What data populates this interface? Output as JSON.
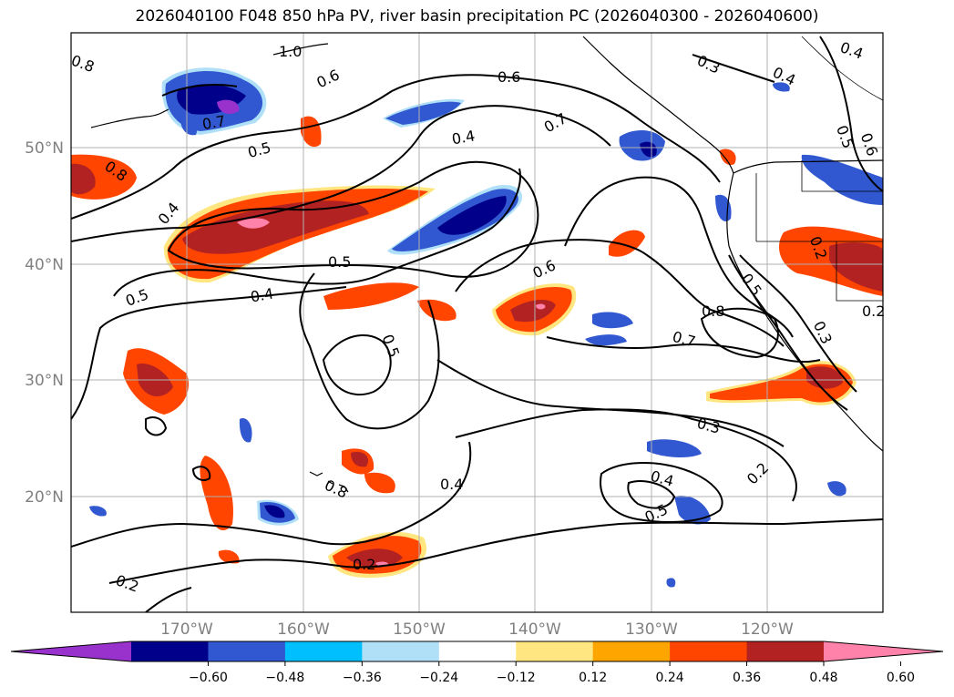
{
  "title": "2026040100 F048 850 hPa PV, river basin precipitation PC (2026040300 - 2026040600)",
  "lat_labels": [
    "50°N",
    "40°N",
    "30°N",
    "20°N"
  ],
  "lon_labels": [
    "170°W",
    "160°W",
    "150°W",
    "140°W",
    "130°W",
    "120°W"
  ],
  "contour_labels": [
    "0.8",
    "1.0",
    "0.6",
    "0.7",
    "0.5",
    "0.8",
    "0.4",
    "0.5",
    "0.6",
    "0.7",
    "0.4",
    "0.3",
    "0.4",
    "0.4",
    "0.5",
    "0.6",
    "0.5",
    "0.4",
    "0.5",
    "0.6",
    "0.8",
    "0.7",
    "0.5",
    "0.2",
    "0.2",
    "0.3",
    "0.3",
    "0.2",
    "0.4",
    "0.4",
    "0.5",
    "0.2",
    "0.2",
    "0.8"
  ],
  "colorbar": {
    "ticks": [
      "−0.60",
      "−0.48",
      "−0.36",
      "−0.24",
      "−0.12",
      "0.12",
      "0.24",
      "0.36",
      "0.48",
      "0.60"
    ],
    "colors": [
      "#9932cc",
      "#00008b",
      "#3158d0",
      "#00bfff",
      "#b0e0f8",
      "#ffffff",
      "#ffe680",
      "#ffa500",
      "#ff4500",
      "#b22222",
      "#ff82ab"
    ],
    "extend": "both"
  },
  "shading_colors": {
    "purple": "#9932cc",
    "navy": "#00008b",
    "blue": "#3158d0",
    "cyan": "#00bfff",
    "lightblue": "#b0e0f8",
    "yellow": "#ffe680",
    "orange": "#ffa500",
    "redorange": "#ff4500",
    "firebrick": "#b22222",
    "pink": "#ff82ab"
  }
}
